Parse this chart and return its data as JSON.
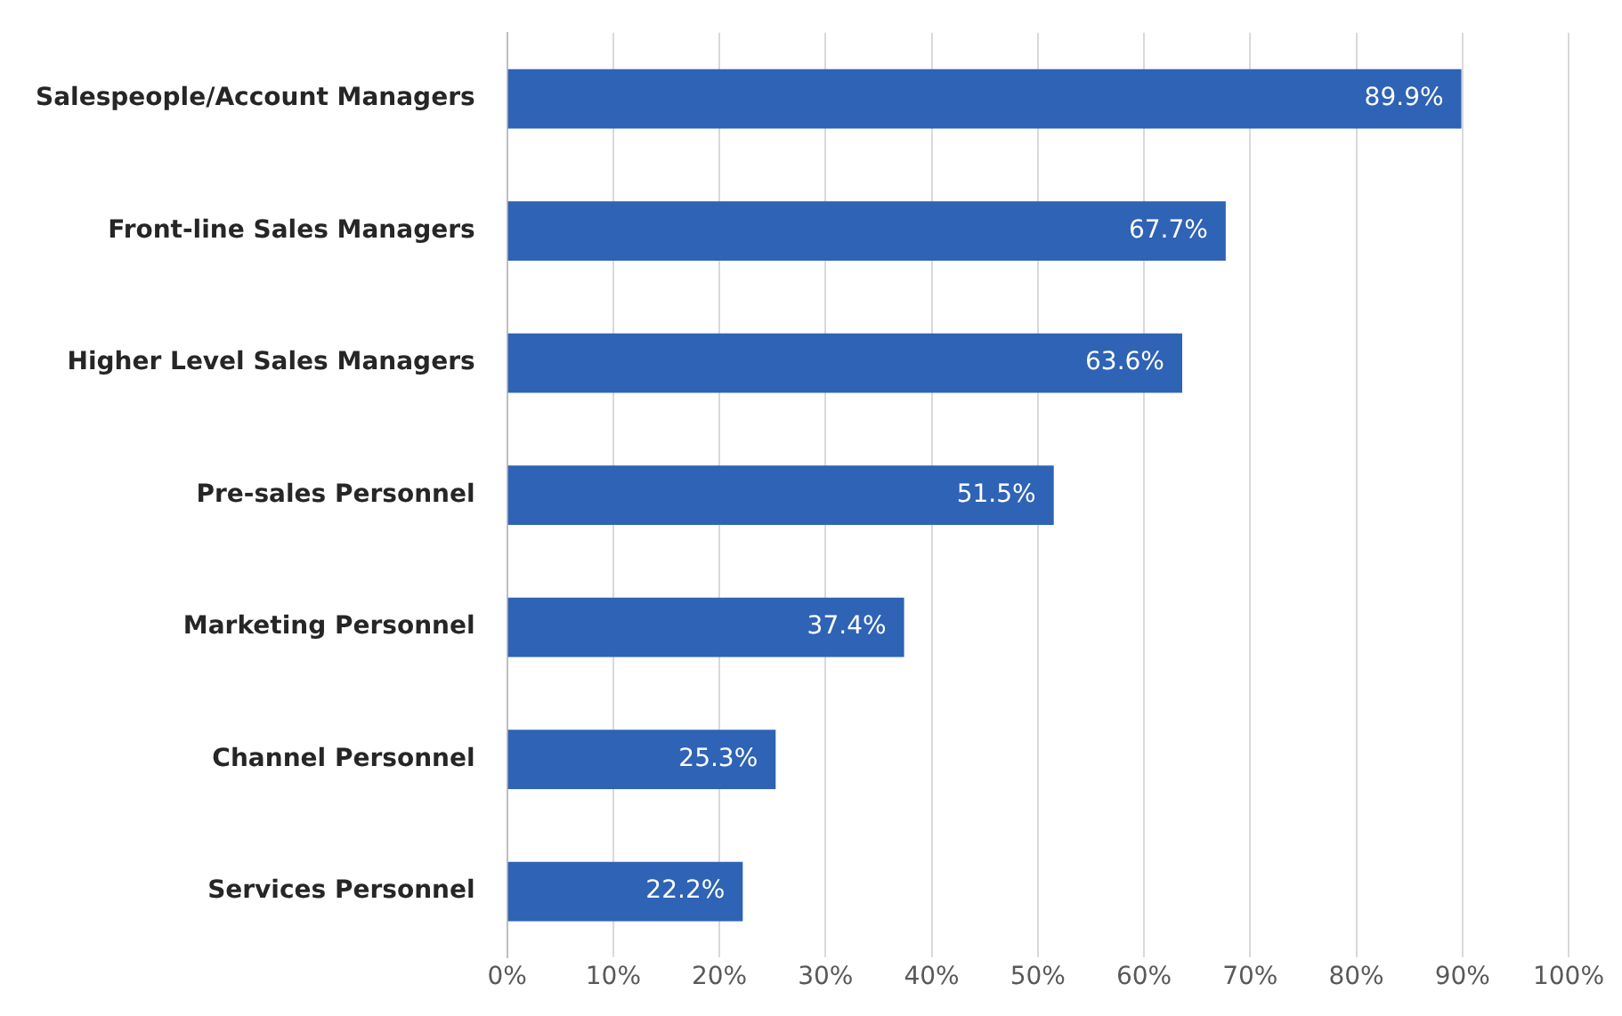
{
  "chart_data": {
    "type": "bar",
    "orientation": "horizontal",
    "categories": [
      "Salespeople/Account Managers",
      "Front-line Sales Managers",
      "Higher Level Sales Managers",
      "Pre-sales Personnel",
      "Marketing Personnel",
      "Channel Personnel",
      "Services Personnel"
    ],
    "values": [
      89.9,
      67.7,
      63.6,
      51.5,
      37.4,
      25.3,
      22.2
    ],
    "value_labels": [
      "89.9%",
      "67.7%",
      "63.6%",
      "51.5%",
      "37.4%",
      "25.3%",
      "22.2%"
    ],
    "color": "#2e63b5",
    "xlim": [
      0,
      100
    ],
    "xticks": [
      {
        "value": 0,
        "label": "0%"
      },
      {
        "value": 10,
        "label": "10%"
      },
      {
        "value": 20,
        "label": "20%"
      },
      {
        "value": 30,
        "label": "30%"
      },
      {
        "value": 40,
        "label": "40%"
      },
      {
        "value": 50,
        "label": "50%"
      },
      {
        "value": 60,
        "label": "60%"
      },
      {
        "value": 70,
        "label": "70%"
      },
      {
        "value": 80,
        "label": "80%"
      },
      {
        "value": 90,
        "label": "90%"
      },
      {
        "value": 100,
        "label": "100%"
      }
    ],
    "grid": "x",
    "legend": false
  }
}
